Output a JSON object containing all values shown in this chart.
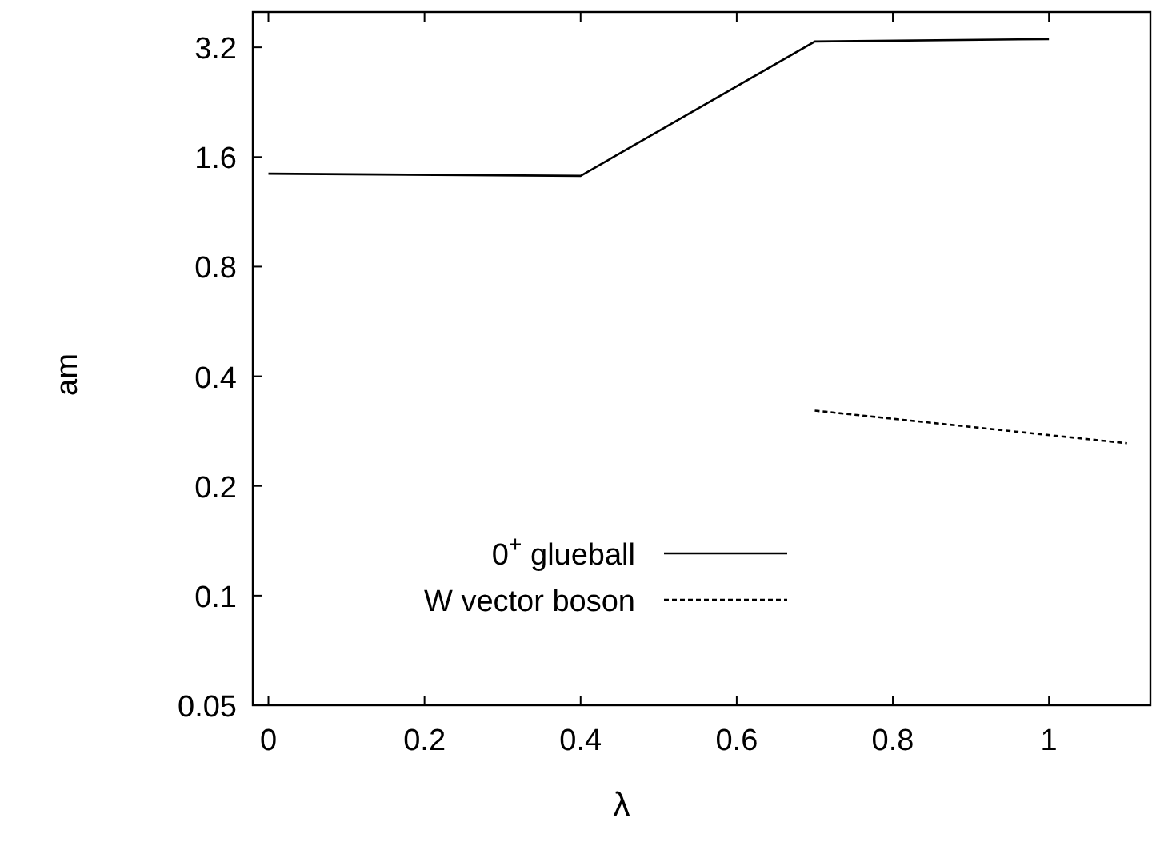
{
  "chart_data": {
    "type": "line",
    "xlabel": "λ",
    "ylabel": "am",
    "log": "y",
    "xlim": [
      -0.02,
      1.13
    ],
    "xticks": [
      0,
      0.2,
      0.4,
      0.6,
      0.8,
      1
    ],
    "ylim": [
      0.05,
      4
    ],
    "yticks": [
      0.05,
      0.1,
      0.2,
      0.4,
      0.8,
      1.6,
      3.2
    ],
    "legend": "bottom left",
    "grid": false,
    "series": [
      {
        "name": "0$^{+}$ glueball",
        "color": "#000000",
        "line_style": "solid",
        "x": [
          0,
          0.4,
          0.7,
          1
        ],
        "values": [
          1.44,
          1.42,
          3.32,
          3.37
        ]
      },
      {
        "name": "W vector boson",
        "color": "#000000",
        "line_style": "dashed",
        "x": [
          0.7,
          1.1
        ],
        "values": [
          0.322,
          0.262
        ]
      }
    ]
  }
}
